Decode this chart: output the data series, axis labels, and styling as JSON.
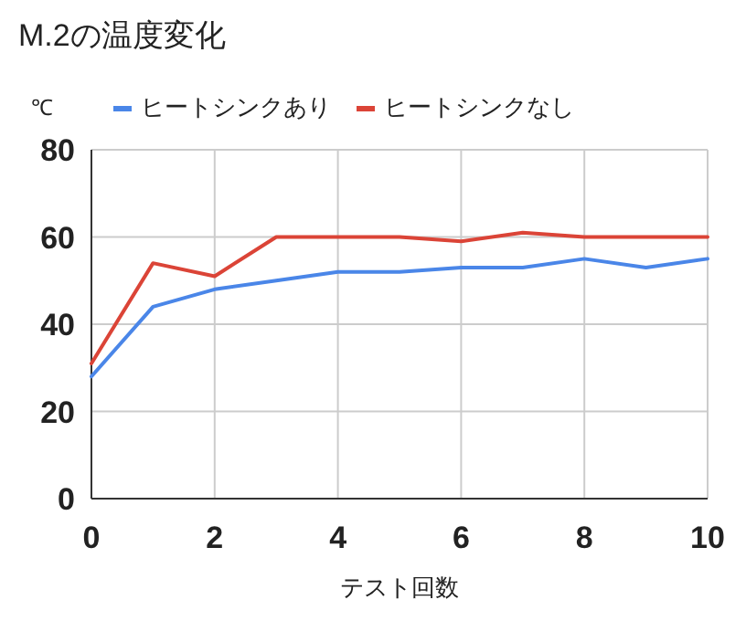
{
  "chart_data": {
    "type": "line",
    "title": "M.2の温度変化",
    "xlabel": "テスト回数",
    "ylabel": "℃",
    "x": [
      0,
      1,
      2,
      3,
      4,
      5,
      6,
      7,
      8,
      9,
      10
    ],
    "series": [
      {
        "name": "ヒートシンクあり",
        "color": "#4a86e8",
        "values": [
          28,
          44,
          48,
          50,
          52,
          52,
          53,
          53,
          55,
          53,
          55
        ]
      },
      {
        "name": "ヒートシンクなし",
        "color": "#db4437",
        "values": [
          31,
          54,
          51,
          60,
          60,
          60,
          59,
          61,
          60,
          60,
          60
        ]
      }
    ],
    "xlim": [
      0,
      10
    ],
    "ylim": [
      0,
      80
    ],
    "xticks": [
      0,
      2,
      4,
      6,
      8,
      10
    ],
    "yticks": [
      0,
      20,
      40,
      60,
      80
    ],
    "grid": true,
    "legend": "top",
    "marker": "none",
    "line_style": "solid"
  }
}
